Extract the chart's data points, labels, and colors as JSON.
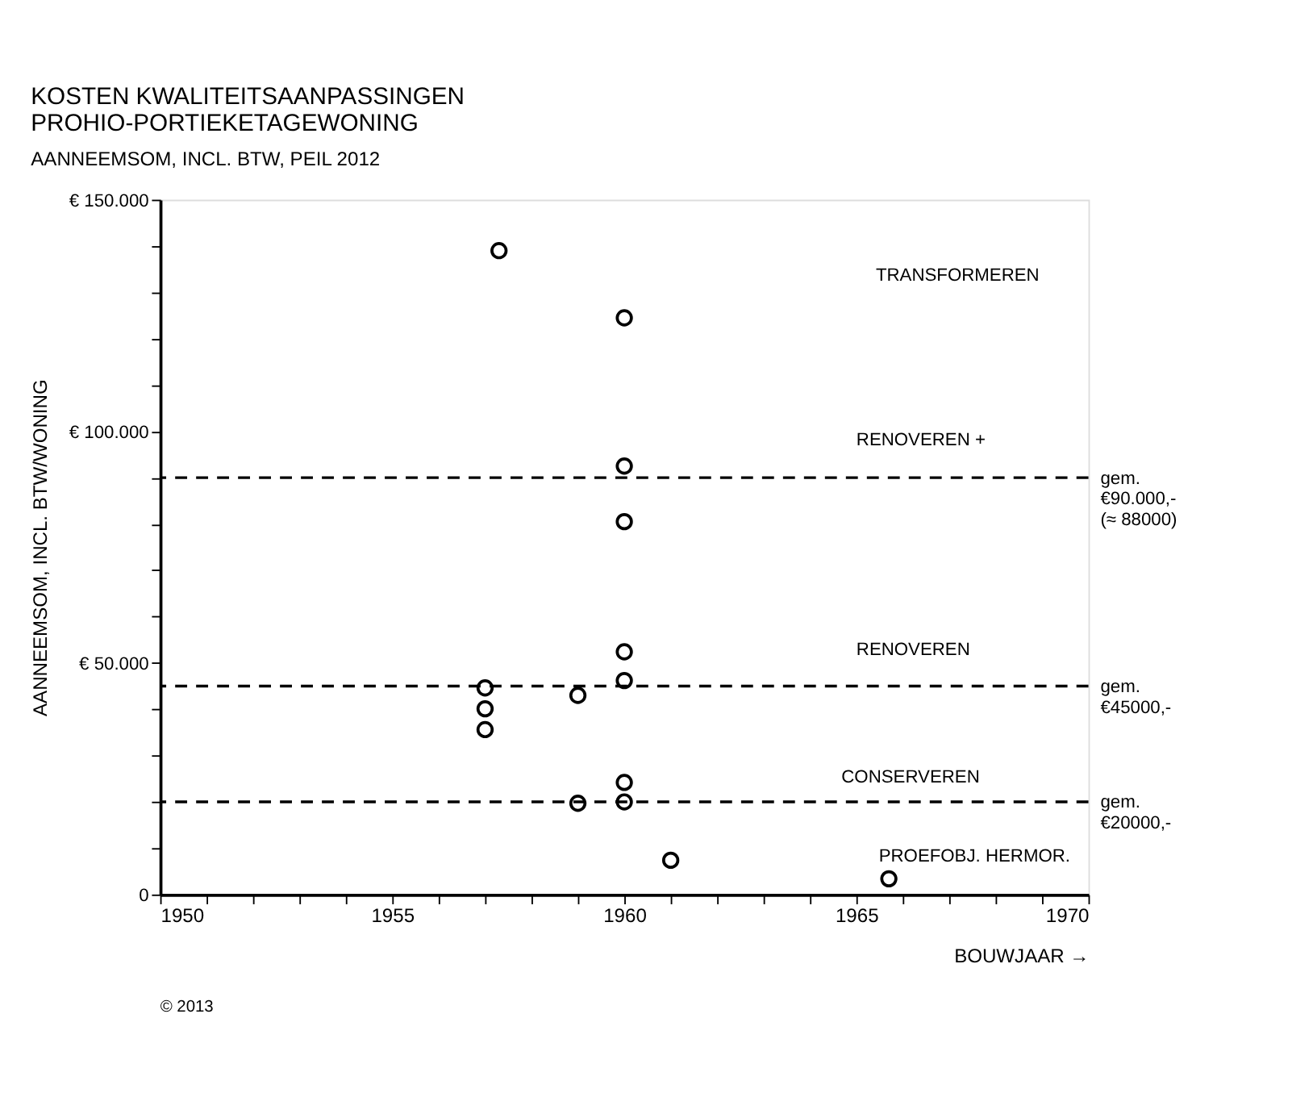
{
  "chart_data": {
    "type": "scatter",
    "title": [
      "KOSTEN KWALITEITSAANPASSINGEN",
      "PROHIO-PORTIEKETAGEWONING"
    ],
    "subtitle": "AANNEEMSOM, INCL. BTW, PEIL 2012",
    "xlabel": "BOUWJAAR →",
    "ylabel": "AANNEEMSOM, INCL. BTW/WONING",
    "x": [
      1957.3,
      1960,
      1960,
      1960,
      1960,
      1960,
      1957,
      1957,
      1957,
      1959,
      1960,
      1960,
      1959,
      1961,
      1965.7
    ],
    "values": [
      139000,
      124500,
      92500,
      80500,
      52400,
      46200,
      44600,
      40100,
      35600,
      43000,
      24200,
      20000,
      19700,
      7400,
      3400
    ],
    "color": "#000000",
    "marker": "circle",
    "xlim": [
      1950,
      1970
    ],
    "xticks": [
      1950,
      {
        "value": 1951,
        "label": null
      },
      {
        "value": 1952,
        "label": null
      },
      {
        "value": 1953,
        "label": null
      },
      {
        "value": 1954,
        "label": null
      },
      1955,
      {
        "value": 1956,
        "label": null
      },
      {
        "value": 1957,
        "label": null
      },
      {
        "value": 1958,
        "label": null
      },
      {
        "value": 1959,
        "label": null
      },
      1960,
      {
        "value": 1961,
        "label": null
      },
      {
        "value": 1962,
        "label": null
      },
      {
        "value": 1963,
        "label": null
      },
      {
        "value": 1964,
        "label": null
      },
      1965,
      {
        "value": 1966,
        "label": null
      },
      {
        "value": 1967,
        "label": null
      },
      {
        "value": 1968,
        "label": null
      },
      {
        "value": 1969,
        "label": null
      },
      1970
    ],
    "ylim": [
      0,
      150000
    ],
    "yticks": [
      0,
      {
        "value": 10000,
        "label": null
      },
      {
        "value": 20000,
        "label": null
      },
      {
        "value": 30000,
        "label": null
      },
      {
        "value": 40000,
        "label": null
      },
      {
        "value": 50000,
        "label": "€ 50.000"
      },
      {
        "value": 60000,
        "label": null
      },
      {
        "value": 70000,
        "label": null
      },
      {
        "value": 80000,
        "label": null
      },
      {
        "value": 90000,
        "label": null
      },
      {
        "value": 100000,
        "label": "€ 100.000"
      },
      {
        "value": 110000,
        "label": null
      },
      {
        "value": 120000,
        "label": null
      },
      {
        "value": 130000,
        "label": null
      },
      {
        "value": 140000,
        "label": null
      },
      {
        "value": 150000,
        "label": "€ 150.000"
      }
    ],
    "ref_lines": [
      {
        "axis": "y",
        "value": 90000,
        "label": "gem.\n€90.000,-\n(≈ 88000)",
        "line_style": "dashed",
        "color": "#000000"
      },
      {
        "axis": "y",
        "value": 45000,
        "label": "gem.\n€45000,-",
        "line_style": "dashed",
        "color": "#000000"
      },
      {
        "axis": "y",
        "value": 20000,
        "label": "gem.\n€20000,-",
        "line_style": "dashed",
        "color": "#000000"
      }
    ],
    "annotations": [
      "TRANSFORMEREN",
      "RENOVEREN +",
      "RENOVEREN",
      "CONSERVEREN",
      "PROEFOBJ. HERMOR.",
      "© 2013"
    ],
    "grid": false,
    "legend": false
  }
}
